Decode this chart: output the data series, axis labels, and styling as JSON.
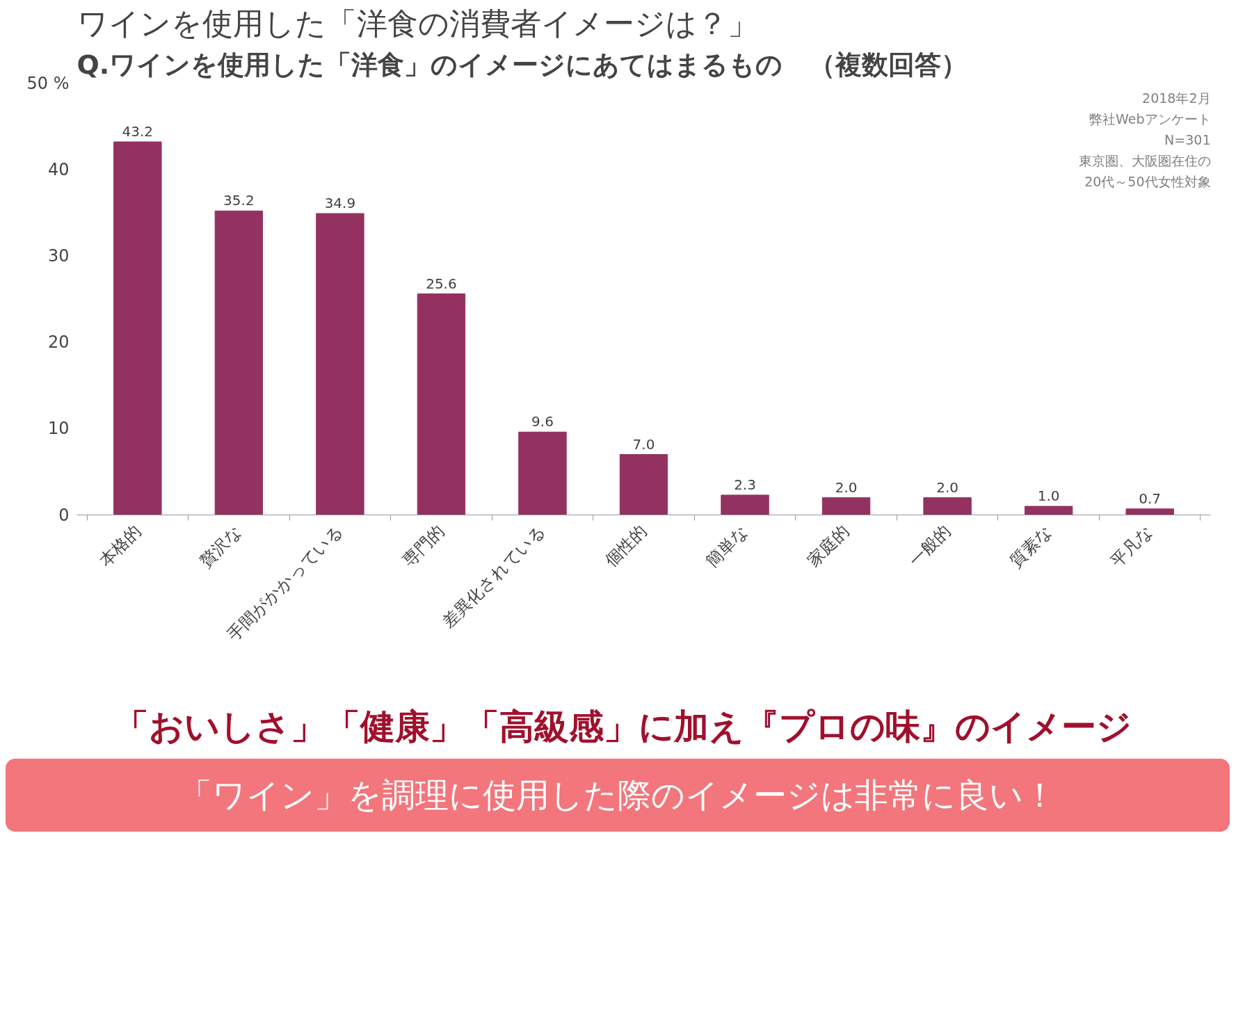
{
  "chart_data": {
    "type": "bar",
    "title": "ワインを使用した「洋食の消費者イメージは？」",
    "subtitle": "Q.ワインを使用した「洋食」のイメージにあてはまるもの　（複数回答）",
    "categories": [
      "本格的",
      "贅沢な",
      "手間がかかっている",
      "専門的",
      "差異化されている",
      "個性的",
      "簡単な",
      "家庭的",
      "一般的",
      "質素な",
      "平凡な"
    ],
    "values": [
      43.2,
      35.2,
      34.9,
      25.6,
      9.6,
      7.0,
      2.3,
      2.0,
      2.0,
      1.0,
      0.7
    ],
    "color": "#933260",
    "value_labels": [
      "43.2",
      "35.2",
      "34.9",
      "25.6",
      "9.6",
      "7.0",
      "2.3",
      "2.0",
      "2.0",
      "1.0",
      "0.7"
    ],
    "ylim": [
      0,
      50
    ],
    "yticks": [
      0,
      10,
      20,
      30,
      40,
      {
        "value": 50,
        "label": "50 %"
      }
    ],
    "grid": false,
    "annotations": [
      "2018年2月",
      "弊社Webアンケート",
      "N=301",
      "東京圏、大阪圏在住の",
      "20代～50代女性対象",
      "「おいしさ」「健康」「高級感」に加え『プロの味』のイメージ",
      "「ワイン」を調理に使用した際のイメージは非常に良い！"
    ]
  }
}
